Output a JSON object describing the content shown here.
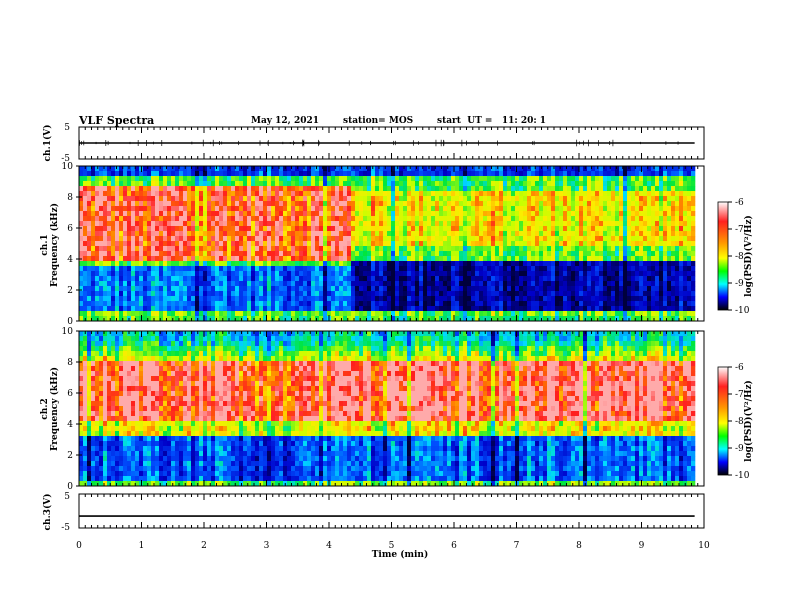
{
  "header": {
    "title": "VLF Spectra",
    "date": "May 12, 2021",
    "station": "station= MOS",
    "start": "start  UT =   11: 20: 1"
  },
  "colors": {
    "colormap": [
      "#ff0000",
      "#ff8000",
      "#ffff00",
      "#00ff00",
      "#00ffff",
      "#0000ff",
      "#000080",
      "#000000"
    ],
    "trace": "#000000"
  },
  "chart_data": [
    {
      "type": "line",
      "id": "ch1-waveform",
      "ylabel": "ch.1(V)",
      "ylim": [
        -5,
        5
      ],
      "yticks": [
        "5",
        "-5"
      ],
      "xlim": [
        0,
        10
      ],
      "series": [
        {
          "values_const": 0
        }
      ]
    },
    {
      "type": "heatmap",
      "id": "ch1-spectrogram",
      "ylabel_line1": "ch.1",
      "ylabel_line2": "Frequency (kHz)",
      "ylim": [
        0,
        10
      ],
      "yticks": [
        "0",
        "2",
        "4",
        "6",
        "8",
        "10"
      ],
      "xlim": [
        0,
        10
      ],
      "data_xmax": 9.85,
      "change_time_min": 4.3,
      "segments": [
        {
          "t_start": 0,
          "t_end": 4.3,
          "red_band_khz": [
            4.0,
            8.8
          ],
          "dark_band_khz": [
            0.5,
            3.5
          ]
        },
        {
          "t_start": 4.3,
          "t_end": 9.85,
          "red_band_khz": [
            5.0,
            8.5
          ],
          "dark_band_khz": [
            0.5,
            4.0
          ]
        }
      ],
      "colorbar": {
        "label": "log(PSD)(V²/Hz)",
        "ticks": [
          "-6",
          "-7",
          "-8",
          "-9",
          "-10"
        ],
        "range": [
          -10,
          -6
        ]
      }
    },
    {
      "type": "heatmap",
      "id": "ch2-spectrogram",
      "ylabel_line1": "ch.2",
      "ylabel_line2": "Frequency (kHz)",
      "ylim": [
        0,
        10
      ],
      "yticks": [
        "0",
        "2",
        "4",
        "6",
        "8",
        "10"
      ],
      "xlim": [
        0,
        10
      ],
      "data_xmax": 9.85,
      "red_band_khz": [
        4.2,
        8.2
      ],
      "colorbar": {
        "label": "log(PSD)(V²/Hz)",
        "ticks": [
          "-6",
          "-7",
          "-8",
          "-9",
          "-10"
        ],
        "range": [
          -10,
          -6
        ]
      }
    },
    {
      "type": "line",
      "id": "ch3-waveform",
      "ylabel": "ch.3(V)",
      "ylim": [
        -5,
        5
      ],
      "yticks": [
        "5",
        "-5"
      ],
      "xlim": [
        0,
        10
      ],
      "series": [
        {
          "values_const": -1.5
        }
      ]
    }
  ],
  "xaxis": {
    "label": "Time (min)",
    "ticks": [
      "0",
      "1",
      "2",
      "3",
      "4",
      "5",
      "6",
      "7",
      "8",
      "9",
      "10"
    ]
  }
}
